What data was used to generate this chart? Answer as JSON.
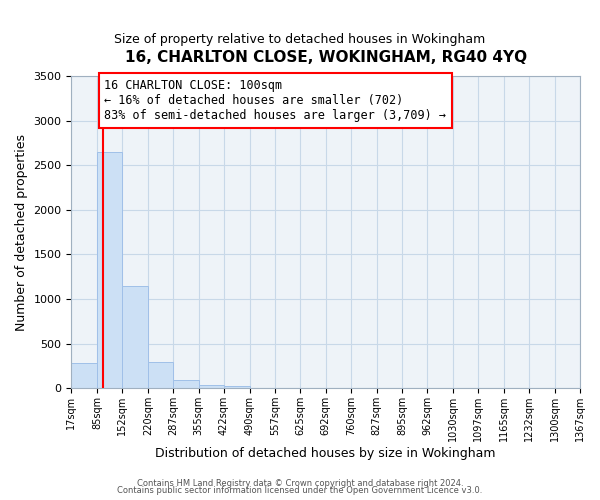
{
  "title": "16, CHARLTON CLOSE, WOKINGHAM, RG40 4YQ",
  "subtitle": "Size of property relative to detached houses in Wokingham",
  "xlabel": "Distribution of detached houses by size in Wokingham",
  "ylabel": "Number of detached properties",
  "bin_edges": [
    17,
    85,
    152,
    220,
    287,
    355,
    422,
    490,
    557,
    625,
    692,
    760,
    827,
    895,
    962,
    1030,
    1097,
    1165,
    1232,
    1300,
    1367
  ],
  "bin_labels": [
    "17sqm",
    "85sqm",
    "152sqm",
    "220sqm",
    "287sqm",
    "355sqm",
    "422sqm",
    "490sqm",
    "557sqm",
    "625sqm",
    "692sqm",
    "760sqm",
    "827sqm",
    "895sqm",
    "962sqm",
    "1030sqm",
    "1097sqm",
    "1165sqm",
    "1232sqm",
    "1300sqm",
    "1367sqm"
  ],
  "counts": [
    280,
    2650,
    1150,
    290,
    90,
    40,
    30,
    0,
    0,
    0,
    0,
    0,
    0,
    0,
    0,
    0,
    0,
    0,
    0,
    0
  ],
  "bar_color": "#cce0f5",
  "bar_edge_color": "#a0c0e8",
  "red_line_x": 100,
  "annotation_line1": "16 CHARLTON CLOSE: 100sqm",
  "annotation_line2": "← 16% of detached houses are smaller (702)",
  "annotation_line3": "83% of semi-detached houses are larger (3,709) →",
  "annotation_box_color": "white",
  "annotation_box_edge_color": "red",
  "ylim": [
    0,
    3500
  ],
  "yticks": [
    0,
    500,
    1000,
    1500,
    2000,
    2500,
    3000,
    3500
  ],
  "grid_color": "#c8d8e8",
  "background_color": "#ffffff",
  "plot_bg_color": "#eef3f8",
  "footer_line1": "Contains HM Land Registry data © Crown copyright and database right 2024.",
  "footer_line2": "Contains public sector information licensed under the Open Government Licence v3.0."
}
